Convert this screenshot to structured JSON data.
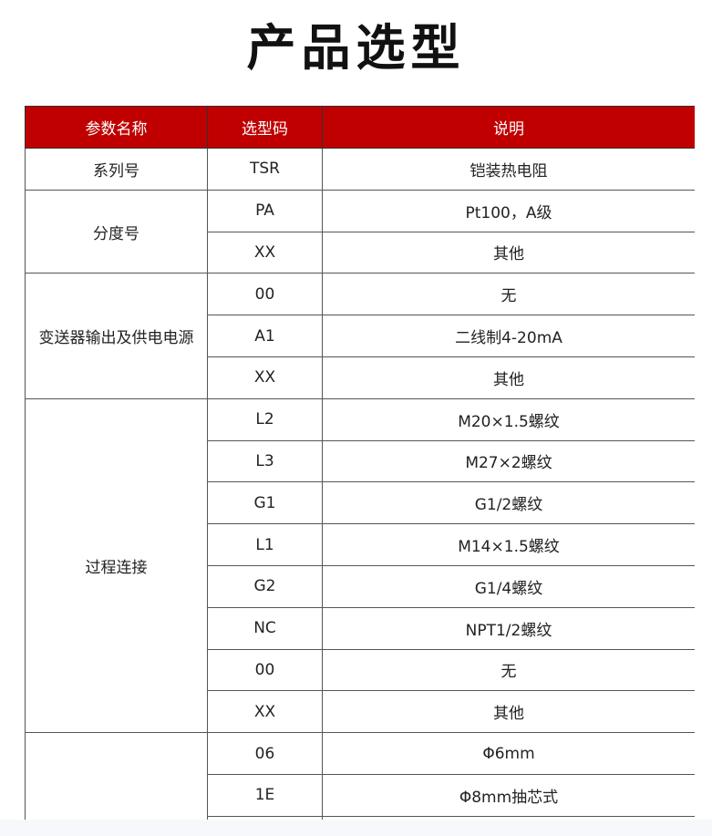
{
  "title": "产品选型",
  "headers": [
    "参数名称",
    "选型码",
    "说明"
  ],
  "groups": [
    {
      "name": "系列号",
      "rows": [
        {
          "code": "TSR",
          "desc": "铠装热电阻"
        }
      ]
    },
    {
      "name": "分度号",
      "rows": [
        {
          "code": "PA",
          "desc": "Pt100，A级"
        },
        {
          "code": "XX",
          "desc": "其他"
        }
      ]
    },
    {
      "name": "变送器输出及供电电源",
      "rows": [
        {
          "code": "00",
          "desc": "无"
        },
        {
          "code": "A1",
          "desc": "二线制4-20mA"
        },
        {
          "code": "XX",
          "desc": "其他"
        }
      ]
    },
    {
      "name": "过程连接",
      "rows": [
        {
          "code": "L2",
          "desc": "M20×1.5螺纹"
        },
        {
          "code": "L3",
          "desc": "M27×2螺纹"
        },
        {
          "code": "G1",
          "desc": "G1/2螺纹"
        },
        {
          "code": "L1",
          "desc": "M14×1.5螺纹"
        },
        {
          "code": "G2",
          "desc": "G1/4螺纹"
        },
        {
          "code": "NC",
          "desc": "NPT1/2螺纹"
        },
        {
          "code": "00",
          "desc": "无"
        },
        {
          "code": "XX",
          "desc": "其他"
        }
      ]
    },
    {
      "name": "",
      "rows": [
        {
          "code": "06",
          "desc": "Φ6mm"
        },
        {
          "code": "1E",
          "desc": "Φ8mm抽芯式"
        },
        {
          "code": "",
          "desc": ""
        }
      ]
    }
  ]
}
